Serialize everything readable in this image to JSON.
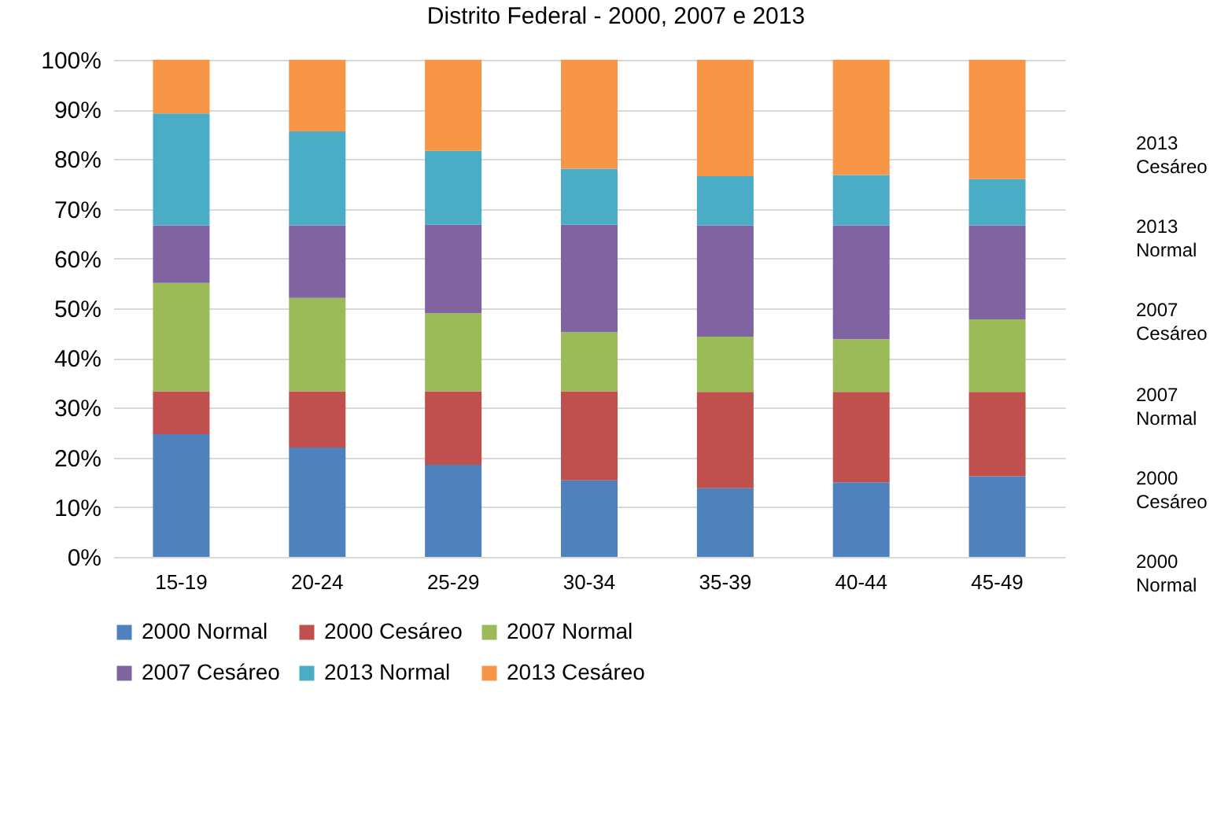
{
  "chart_data": {
    "type": "bar",
    "title": "Distrito Federal - 2000, 2007 e 2013",
    "stacked": true,
    "categories": [
      "15-19",
      "20-24",
      "25-29",
      "30-34",
      "35-39",
      "40-44",
      "45-49"
    ],
    "series": [
      {
        "name": "2000 Normal",
        "color": "#4f81bd",
        "values": [
          24.7,
          22.0,
          18.5,
          15.4,
          13.8,
          15.0,
          16.2
        ]
      },
      {
        "name": "2000 Cesáreo",
        "color": "#c0504d",
        "values": [
          8.6,
          11.3,
          14.8,
          17.9,
          19.4,
          18.2,
          17.0
        ]
      },
      {
        "name": "2007 Normal",
        "color": "#9bbb59",
        "values": [
          21.8,
          18.8,
          15.7,
          11.9,
          11.1,
          10.6,
          14.6
        ]
      },
      {
        "name": "2007 Cesáreo",
        "color": "#8064a2",
        "values": [
          11.6,
          14.6,
          17.8,
          21.6,
          22.4,
          22.9,
          18.9
        ]
      },
      {
        "name": "2013 Normal",
        "color": "#4bacc6",
        "values": [
          22.5,
          18.9,
          14.9,
          11.3,
          9.9,
          10.1,
          9.3
        ]
      },
      {
        "name": "2013 Cesáreo",
        "color": "#f79646",
        "values": [
          10.8,
          14.4,
          18.3,
          21.9,
          23.4,
          23.2,
          24.0
        ]
      }
    ],
    "ylim": [
      0,
      100
    ],
    "yticks": [
      {
        "value": 0,
        "label": "0%"
      },
      {
        "value": 10,
        "label": "10%"
      },
      {
        "value": 20,
        "label": "20%"
      },
      {
        "value": 30,
        "label": "30%"
      },
      {
        "value": 40,
        "label": "40%"
      },
      {
        "value": 50,
        "label": "50%"
      },
      {
        "value": 60,
        "label": "60%"
      },
      {
        "value": 70,
        "label": "70%"
      },
      {
        "value": 80,
        "label": "80%"
      },
      {
        "value": 90,
        "label": "90%"
      },
      {
        "value": 100,
        "label": "100%"
      }
    ],
    "grid": "y",
    "legend": "bottom",
    "annotations": [
      "2013 Cesáreo",
      "2013 Normal",
      "2007 Cesáreo",
      "2007 Normal",
      "2000 Cesáreo",
      "2000 Normal"
    ]
  }
}
